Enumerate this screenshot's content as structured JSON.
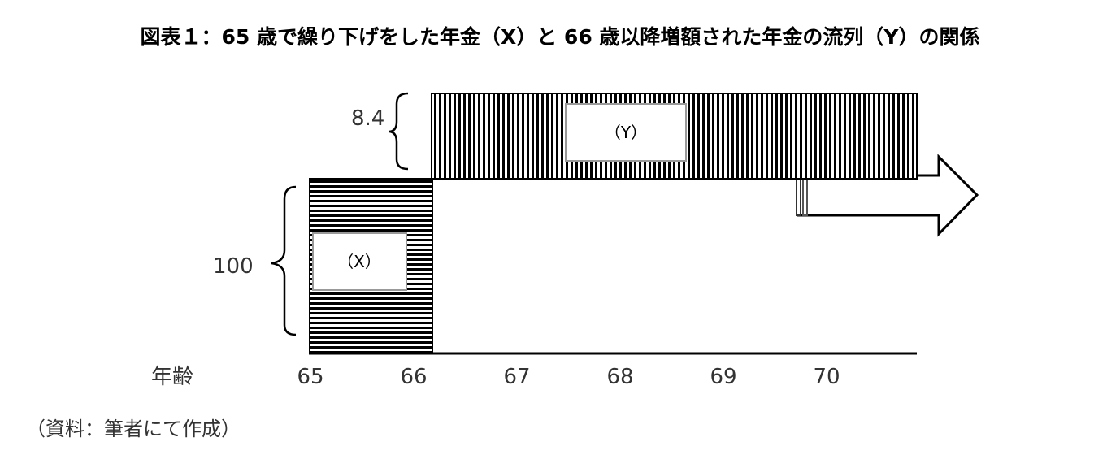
{
  "title": "図表１：65 歳で繰り下げをした年金（X）と 66 歳以降増額された年金の流列（Y）の関係",
  "labels": {
    "y_value": "8.4",
    "x_value": "100",
    "y_box": "（Y）",
    "x_box": "（X）",
    "age_label": "年齢"
  },
  "ages": [
    "65",
    "66",
    "67",
    "68",
    "69",
    "70"
  ],
  "source": "（資料：筆者にて作成）",
  "colors": {
    "fill": "#000000",
    "box_border": "#999999"
  }
}
